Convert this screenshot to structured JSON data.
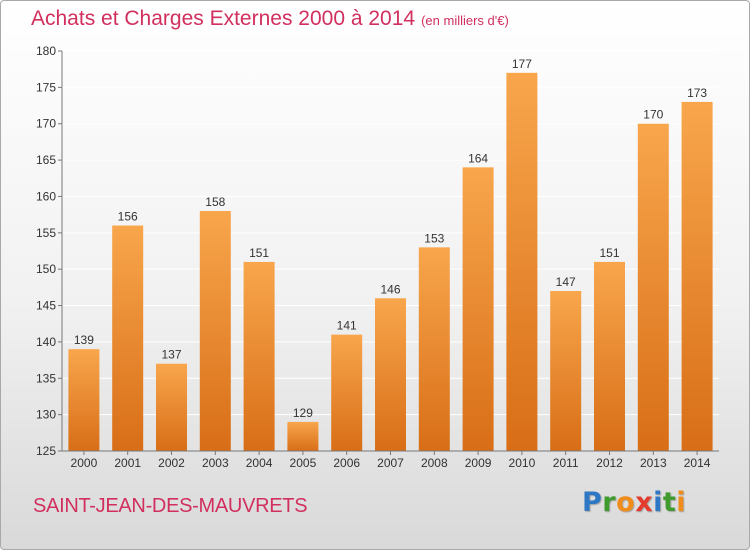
{
  "title": "Achats et Charges Externes 2000 à 2014",
  "unit_note": "(en milliers d'€)",
  "commune": "SAINT-JEAN-DES-MAUVRETS",
  "logo": {
    "text": "Proxiti",
    "letters": [
      {
        "ch": "P",
        "color": "#2e77c4"
      },
      {
        "ch": "r",
        "color": "#3f9b2e"
      },
      {
        "ch": "o",
        "color": "#f08c1a"
      },
      {
        "ch": "x",
        "color": "#e33b2e"
      },
      {
        "ch": "i",
        "color": "#2e77c4"
      },
      {
        "ch": "t",
        "color": "#3f9b2e"
      },
      {
        "ch": "i",
        "color": "#f08c1a"
      }
    ]
  },
  "colors": {
    "title": "#d1305e",
    "bar_light": "#f8a64c",
    "bar_dark": "#d86e17",
    "axis": "#777777",
    "grid": "#ffffff"
  },
  "chart_data": {
    "type": "bar",
    "categories": [
      "2000",
      "2001",
      "2002",
      "2003",
      "2004",
      "2005",
      "2006",
      "2007",
      "2008",
      "2009",
      "2010",
      "2011",
      "2012",
      "2013",
      "2014"
    ],
    "values": [
      139,
      156,
      137,
      158,
      151,
      129,
      141,
      146,
      153,
      164,
      177,
      147,
      151,
      170,
      173
    ],
    "ylim": [
      125,
      180
    ],
    "yticks": [
      125,
      130,
      135,
      140,
      145,
      150,
      155,
      160,
      165,
      170,
      175,
      180
    ],
    "grid": true,
    "data_labels": true
  }
}
